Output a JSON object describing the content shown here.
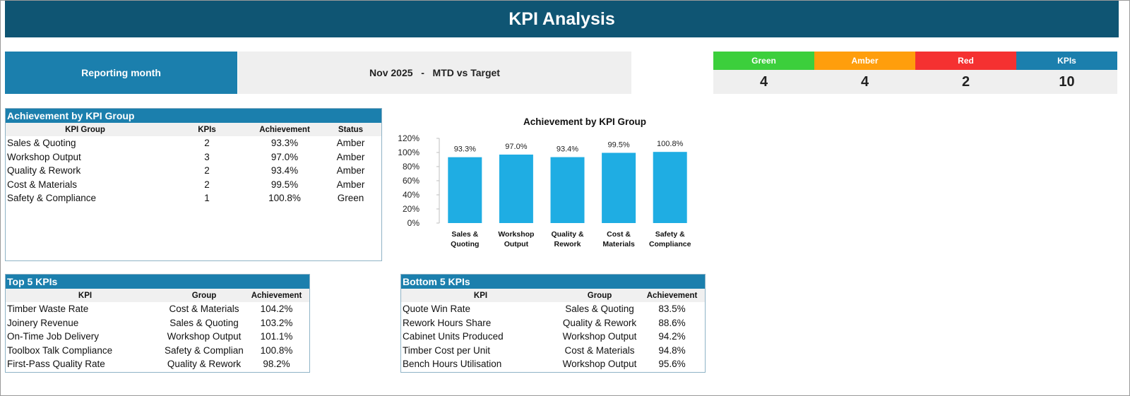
{
  "title": "KPI Analysis",
  "reporting": {
    "label": "Reporting month",
    "value": "Nov 2025   -   MTD vs Target"
  },
  "status_summary": [
    {
      "label": "Green",
      "count": "4",
      "color": "#3ccf3c"
    },
    {
      "label": "Amber",
      "count": "4",
      "color": "#ff9e0c"
    },
    {
      "label": "Red",
      "count": "2",
      "color": "#f53131"
    },
    {
      "label": "KPIs",
      "count": "10",
      "color": "#1b7fad"
    }
  ],
  "group_table": {
    "title": "Achievement by KPI Group",
    "columns": [
      "KPI Group",
      "KPIs",
      "Achievement",
      "Status"
    ],
    "rows": [
      [
        "Sales & Quoting",
        "2",
        "93.3%",
        "Amber"
      ],
      [
        "Workshop Output",
        "3",
        "97.0%",
        "Amber"
      ],
      [
        "Quality & Rework",
        "2",
        "93.4%",
        "Amber"
      ],
      [
        "Cost & Materials",
        "2",
        "99.5%",
        "Amber"
      ],
      [
        "Safety & Compliance",
        "1",
        "100.8%",
        "Green"
      ]
    ]
  },
  "chart_data": {
    "type": "bar",
    "title": "Achievement by KPI Group",
    "categories": [
      [
        "Sales &",
        "Quoting"
      ],
      [
        "Workshop",
        "Output"
      ],
      [
        "Quality &",
        "Rework"
      ],
      [
        "Cost &",
        "Materials"
      ],
      [
        "Safety &",
        "Compliance"
      ]
    ],
    "values": [
      93.3,
      97.0,
      93.4,
      99.5,
      100.8
    ],
    "data_labels": [
      "93.3%",
      "97.0%",
      "93.4%",
      "99.5%",
      "100.8%"
    ],
    "ylim": [
      0,
      120
    ],
    "yticks": [
      "0%",
      "20%",
      "40%",
      "60%",
      "80%",
      "100%",
      "120%"
    ],
    "bar_color": "#1fade3",
    "grid": false,
    "legend": "none"
  },
  "top5": {
    "title": "Top 5 KPIs",
    "columns": [
      "KPI",
      "Group",
      "Achievement"
    ],
    "rows": [
      [
        "Timber Waste Rate",
        "Cost & Materials",
        "104.2%"
      ],
      [
        "Joinery Revenue",
        "Sales & Quoting",
        "103.2%"
      ],
      [
        "On-Time Job Delivery",
        "Workshop Output",
        "101.1%"
      ],
      [
        "Toolbox Talk Compliance",
        "Safety & Compliance",
        "100.8%"
      ],
      [
        "First-Pass Quality Rate",
        "Quality & Rework",
        "98.2%"
      ]
    ]
  },
  "bottom5": {
    "title": "Bottom 5 KPIs",
    "columns": [
      "KPI",
      "Group",
      "Achievement"
    ],
    "rows": [
      [
        "Quote Win Rate",
        "Sales & Quoting",
        "83.5%"
      ],
      [
        "Rework Hours Share",
        "Quality & Rework",
        "88.6%"
      ],
      [
        "Cabinet Units Produced",
        "Workshop Output",
        "94.2%"
      ],
      [
        "Timber Cost per Unit",
        "Cost & Materials",
        "94.8%"
      ],
      [
        "Bench Hours Utilisation",
        "Workshop Output",
        "95.6%"
      ]
    ]
  }
}
